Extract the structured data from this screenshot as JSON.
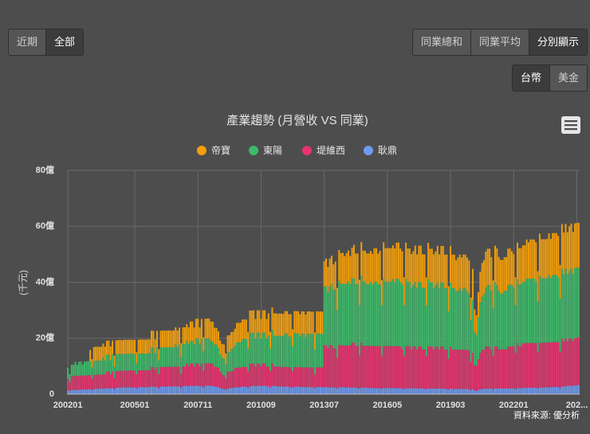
{
  "controls": {
    "range": [
      "近期",
      "全部"
    ],
    "mode": [
      "同業總和",
      "同業平均",
      "分別顯示"
    ],
    "currency": [
      "台幣",
      "美金"
    ]
  },
  "chart_data": {
    "type": "bar",
    "stacked": true,
    "title": "產業趨勢 (月營收 VS 同業)",
    "y_label": "(千元)",
    "source": "資料來源: 優分析",
    "grid": true,
    "legend": "top",
    "ylim": [
      0,
      80
    ],
    "yticks": [
      0,
      {
        "value": 20,
        "label": "20億"
      },
      {
        "value": 40,
        "label": "40億"
      },
      {
        "value": 60,
        "label": "60億"
      },
      {
        "value": 80,
        "label": "80億"
      }
    ],
    "categories": [
      "200201",
      null,
      null,
      null,
      null,
      null,
      null,
      null,
      null,
      null,
      null,
      null,
      null,
      null,
      null,
      null,
      null,
      null,
      null,
      null,
      null,
      null,
      null,
      null,
      null,
      null,
      null,
      null,
      null,
      null,
      null,
      null,
      null,
      null,
      null,
      null,
      "200501",
      null,
      null,
      null,
      null,
      null,
      null,
      null,
      null,
      null,
      null,
      null,
      null,
      null,
      null,
      null,
      null,
      null,
      null,
      null,
      null,
      null,
      null,
      null,
      null,
      null,
      null,
      null,
      null,
      null,
      null,
      null,
      null,
      null,
      "200711",
      null,
      null,
      null,
      null,
      null,
      null,
      null,
      null,
      null,
      null,
      null,
      null,
      null,
      null,
      null,
      null,
      null,
      null,
      null,
      null,
      null,
      null,
      null,
      null,
      null,
      null,
      null,
      null,
      null,
      null,
      null,
      null,
      null,
      "201009",
      null,
      null,
      null,
      null,
      null,
      null,
      null,
      null,
      null,
      null,
      null,
      null,
      null,
      null,
      null,
      null,
      null,
      null,
      null,
      null,
      null,
      null,
      null,
      null,
      null,
      null,
      null,
      null,
      null,
      null,
      null,
      null,
      null,
      "201307",
      null,
      null,
      null,
      null,
      null,
      null,
      null,
      null,
      null,
      null,
      null,
      null,
      null,
      null,
      null,
      null,
      null,
      null,
      null,
      null,
      null,
      null,
      null,
      null,
      null,
      null,
      null,
      null,
      null,
      null,
      null,
      null,
      null,
      "201605",
      null,
      null,
      null,
      null,
      null,
      null,
      null,
      null,
      null,
      null,
      null,
      null,
      null,
      null,
      null,
      null,
      null,
      null,
      null,
      null,
      null,
      null,
      null,
      null,
      null,
      null,
      null,
      null,
      null,
      null,
      null,
      null,
      null,
      "201903",
      null,
      null,
      null,
      null,
      null,
      null,
      null,
      null,
      null,
      null,
      null,
      null,
      null,
      null,
      null,
      null,
      null,
      null,
      null,
      null,
      null,
      null,
      null,
      null,
      null,
      null,
      null,
      null,
      null,
      null,
      null,
      null,
      null,
      "202201",
      null,
      null,
      null,
      null,
      null,
      null,
      null,
      null,
      null,
      null,
      null,
      null,
      null,
      null,
      null,
      null,
      null,
      null,
      null,
      null,
      null,
      null,
      null,
      null,
      null,
      null,
      null,
      null,
      null,
      null,
      null,
      null,
      null,
      "202...",
      null
    ],
    "series": [
      {
        "name": "帝寶",
        "color": "#f5a00a",
        "values": [
          null,
          null,
          null,
          null,
          null,
          null,
          null,
          null,
          null,
          null,
          null,
          null,
          4,
          3,
          5,
          5,
          5,
          5,
          5,
          5,
          5,
          5,
          5,
          5,
          5,
          4,
          5,
          5,
          5,
          5,
          5,
          5,
          5,
          5,
          5,
          5,
          5,
          4,
          5,
          5,
          5,
          5,
          5,
          5,
          5,
          6,
          6,
          5,
          6,
          4,
          6,
          6,
          6,
          6,
          6,
          6,
          6,
          6,
          6,
          6,
          6,
          5,
          6,
          6,
          6,
          6,
          7,
          7,
          6,
          7,
          7,
          6,
          7,
          5,
          7,
          7,
          7,
          7,
          7,
          6,
          6,
          6,
          5,
          5,
          5,
          4,
          6,
          6,
          6,
          6,
          6,
          7,
          7,
          7,
          7,
          7,
          7,
          6,
          8,
          8,
          8,
          7,
          8,
          8,
          7,
          8,
          8,
          7,
          8,
          6,
          8,
          8,
          8,
          8,
          8,
          8,
          8,
          8,
          8,
          8,
          8,
          6,
          8,
          8,
          8,
          8,
          8,
          8,
          8,
          8,
          8,
          8,
          8,
          6,
          8,
          8,
          8,
          8,
          9,
          10,
          9,
          10,
          10,
          9,
          10,
          8,
          11,
          11,
          11,
          10,
          11,
          11,
          10,
          11,
          12,
          11,
          11,
          9,
          12,
          11,
          11,
          11,
          11,
          11,
          11,
          12,
          12,
          11,
          12,
          9,
          13,
          12,
          12,
          12,
          12,
          12,
          12,
          13,
          13,
          12,
          12,
          10,
          13,
          12,
          12,
          12,
          12,
          13,
          12,
          13,
          13,
          12,
          12,
          10,
          13,
          12,
          12,
          12,
          12,
          13,
          12,
          13,
          13,
          12,
          12,
          9,
          13,
          12,
          12,
          11,
          12,
          12,
          12,
          12,
          12,
          12,
          12,
          8,
          11,
          8,
          7,
          9,
          11,
          12,
          12,
          13,
          13,
          13,
          12,
          10,
          13,
          13,
          12,
          12,
          12,
          12,
          12,
          13,
          13,
          12,
          12,
          10,
          13,
          13,
          13,
          13,
          13,
          14,
          13,
          14,
          14,
          14,
          14,
          11,
          15,
          14,
          14,
          14,
          14,
          15,
          14,
          15,
          15,
          15,
          15,
          12,
          16,
          15,
          16,
          15,
          16,
          16,
          15,
          16,
          16,
          16
        ]
      },
      {
        "name": "東陽",
        "color": "#3dbb6a",
        "values": [
          4,
          3,
          4,
          4,
          5,
          4,
          5,
          5,
          4,
          5,
          5,
          5,
          5,
          4,
          5,
          5,
          5,
          5,
          5,
          6,
          5,
          6,
          6,
          5,
          6,
          4,
          6,
          6,
          6,
          6,
          6,
          6,
          6,
          6,
          6,
          6,
          6,
          4,
          6,
          6,
          6,
          6,
          6,
          6,
          6,
          7,
          7,
          6,
          7,
          5,
          7,
          7,
          7,
          7,
          7,
          7,
          7,
          7,
          8,
          7,
          8,
          6,
          8,
          8,
          8,
          8,
          8,
          8,
          8,
          9,
          9,
          8,
          9,
          7,
          9,
          9,
          9,
          8,
          8,
          8,
          8,
          7,
          6,
          6,
          6,
          5,
          7,
          7,
          8,
          8,
          8,
          9,
          9,
          9,
          10,
          10,
          10,
          8,
          11,
          11,
          11,
          10,
          11,
          11,
          10,
          11,
          11,
          10,
          11,
          8,
          12,
          11,
          11,
          11,
          11,
          11,
          11,
          12,
          12,
          11,
          11,
          9,
          12,
          12,
          12,
          11,
          12,
          12,
          11,
          12,
          12,
          12,
          12,
          9,
          12,
          12,
          12,
          12,
          21,
          21,
          20,
          21,
          22,
          21,
          21,
          17,
          23,
          22,
          22,
          22,
          22,
          23,
          22,
          23,
          23,
          22,
          22,
          18,
          24,
          23,
          23,
          22,
          22,
          23,
          22,
          23,
          23,
          22,
          22,
          18,
          24,
          23,
          23,
          23,
          23,
          24,
          23,
          24,
          24,
          23,
          23,
          18,
          24,
          23,
          23,
          22,
          22,
          23,
          22,
          23,
          23,
          22,
          22,
          18,
          24,
          23,
          23,
          22,
          22,
          23,
          22,
          23,
          23,
          22,
          22,
          17,
          23,
          22,
          22,
          21,
          21,
          22,
          21,
          22,
          22,
          21,
          20,
          15,
          19,
          12,
          11,
          15,
          18,
          19,
          20,
          21,
          22,
          22,
          21,
          17,
          23,
          22,
          21,
          20,
          20,
          21,
          21,
          22,
          22,
          22,
          21,
          17,
          23,
          22,
          22,
          22,
          22,
          23,
          23,
          23,
          23,
          23,
          22,
          18,
          24,
          23,
          23,
          23,
          23,
          24,
          23,
          24,
          24,
          24,
          23,
          19,
          25,
          24,
          25,
          24,
          24,
          25,
          24,
          25,
          25,
          25
        ]
      },
      {
        "name": "堤維西",
        "color": "#e8336f",
        "values": [
          4,
          3,
          5,
          5,
          5,
          5,
          5,
          5,
          5,
          5,
          5,
          5,
          5,
          4,
          5,
          5,
          5,
          5,
          5,
          5,
          5,
          6,
          6,
          5,
          6,
          4,
          6,
          6,
          6,
          6,
          6,
          6,
          6,
          6,
          6,
          6,
          6,
          5,
          6,
          6,
          6,
          6,
          6,
          6,
          6,
          7,
          7,
          6,
          7,
          5,
          7,
          7,
          7,
          7,
          7,
          7,
          7,
          7,
          7,
          7,
          7,
          5,
          7,
          7,
          8,
          7,
          8,
          8,
          7,
          8,
          8,
          7,
          8,
          6,
          8,
          8,
          8,
          8,
          8,
          7,
          7,
          7,
          6,
          5,
          5,
          4,
          6,
          6,
          6,
          6,
          7,
          7,
          7,
          7,
          7,
          7,
          7,
          6,
          8,
          8,
          8,
          7,
          8,
          8,
          7,
          8,
          8,
          7,
          7,
          6,
          8,
          7,
          7,
          7,
          7,
          7,
          7,
          7,
          7,
          7,
          7,
          6,
          7,
          7,
          7,
          7,
          7,
          7,
          7,
          7,
          7,
          7,
          7,
          5,
          7,
          7,
          7,
          7,
          15,
          15,
          14,
          15,
          15,
          14,
          14,
          11,
          15,
          15,
          15,
          15,
          15,
          15,
          15,
          16,
          16,
          15,
          15,
          12,
          16,
          15,
          15,
          15,
          15,
          15,
          15,
          15,
          15,
          15,
          15,
          12,
          15,
          15,
          15,
          15,
          15,
          15,
          15,
          15,
          15,
          15,
          14,
          12,
          15,
          15,
          15,
          14,
          15,
          15,
          14,
          15,
          15,
          14,
          14,
          12,
          15,
          15,
          15,
          14,
          15,
          15,
          14,
          15,
          15,
          14,
          14,
          11,
          15,
          14,
          14,
          14,
          14,
          14,
          14,
          14,
          14,
          14,
          14,
          10,
          13,
          9,
          9,
          11,
          13,
          14,
          14,
          15,
          15,
          15,
          14,
          12,
          15,
          15,
          14,
          14,
          14,
          14,
          14,
          15,
          15,
          15,
          15,
          13,
          16,
          15,
          15,
          16,
          16,
          16,
          16,
          16,
          16,
          16,
          16,
          13,
          16,
          16,
          16,
          16,
          16,
          16,
          16,
          16,
          16,
          16,
          16,
          13,
          17,
          16,
          17,
          16,
          17,
          17,
          16,
          17,
          17,
          17
        ]
      },
      {
        "name": "耿鼎",
        "color": "#6f9bf0",
        "values": [
          1.4,
          1.2,
          1.5,
          1.5,
          1.6,
          1.5,
          1.6,
          1.7,
          1.6,
          1.7,
          1.7,
          1.8,
          1.8,
          1.5,
          1.9,
          1.9,
          2,
          1.9,
          2,
          2.1,
          2,
          2.1,
          2.2,
          2.1,
          2.2,
          1.8,
          2.3,
          2.3,
          2.4,
          2.3,
          2.4,
          2.5,
          2.4,
          2.5,
          2.5,
          2.4,
          2.4,
          2,
          2.5,
          2.5,
          2.6,
          2.5,
          2.5,
          2.6,
          2.6,
          2.7,
          2.7,
          2.6,
          2.6,
          2.1,
          2.7,
          2.7,
          2.8,
          2.7,
          2.8,
          2.8,
          2.7,
          2.8,
          2.9,
          2.8,
          2.8,
          2.2,
          2.9,
          2.9,
          3,
          2.9,
          3,
          3,
          2.9,
          3,
          3,
          2.9,
          2.9,
          2.3,
          3,
          3,
          3.1,
          3,
          2.9,
          2.8,
          2.7,
          2.5,
          2.2,
          2,
          1.8,
          1.6,
          2,
          2.1,
          2.2,
          2.3,
          2.4,
          2.5,
          2.5,
          2.6,
          2.7,
          2.7,
          2.7,
          2.2,
          2.9,
          2.9,
          3,
          2.9,
          3,
          3,
          2.9,
          3,
          3,
          2.9,
          2.9,
          2.3,
          3,
          2.9,
          2.9,
          2.8,
          2.8,
          2.8,
          2.7,
          2.7,
          2.7,
          2.6,
          2.6,
          2.2,
          2.7,
          2.7,
          2.7,
          2.6,
          2.6,
          2.6,
          2.5,
          2.6,
          2.6,
          2.5,
          2.5,
          2,
          2.6,
          2.6,
          2.6,
          2.5,
          2.5,
          2.5,
          2.5,
          2.5,
          2.5,
          2.4,
          2.4,
          2,
          2.5,
          2.5,
          2.5,
          2.4,
          2.4,
          2.4,
          2.4,
          2.4,
          2.4,
          2.3,
          2.3,
          1.9,
          2.4,
          2.3,
          2.3,
          2.3,
          2.3,
          2.2,
          2.2,
          2.2,
          2.2,
          2.2,
          2.2,
          1.8,
          2.3,
          2.2,
          2.2,
          2.2,
          2.2,
          2.2,
          2.1,
          2.2,
          2.2,
          2.1,
          2.1,
          1.8,
          2.2,
          2.1,
          2.1,
          2.1,
          2.1,
          2.1,
          2,
          2.1,
          2.1,
          2,
          2,
          1.7,
          2.1,
          2,
          2,
          2,
          2,
          2,
          2,
          2,
          2,
          1.9,
          1.9,
          1.6,
          2,
          1.9,
          1.9,
          1.9,
          1.9,
          1.9,
          1.9,
          1.9,
          1.9,
          1.8,
          1.8,
          1.5,
          1.8,
          1.3,
          1.2,
          1.5,
          1.8,
          1.9,
          1.9,
          2,
          2,
          2,
          2,
          1.7,
          2.1,
          2.1,
          2.1,
          2,
          2,
          2,
          2,
          2,
          2.1,
          2.1,
          2.1,
          1.8,
          2.2,
          2.2,
          2.2,
          2.2,
          2.2,
          2.3,
          2.3,
          2.3,
          2.3,
          2.3,
          2.3,
          2,
          2.4,
          2.4,
          2.4,
          2.4,
          2.5,
          2.5,
          2.5,
          2.6,
          2.6,
          2.6,
          2.6,
          2.2,
          2.8,
          2.8,
          2.9,
          2.9,
          3,
          3,
          3,
          3.1,
          3.2,
          3.3
        ]
      }
    ]
  }
}
